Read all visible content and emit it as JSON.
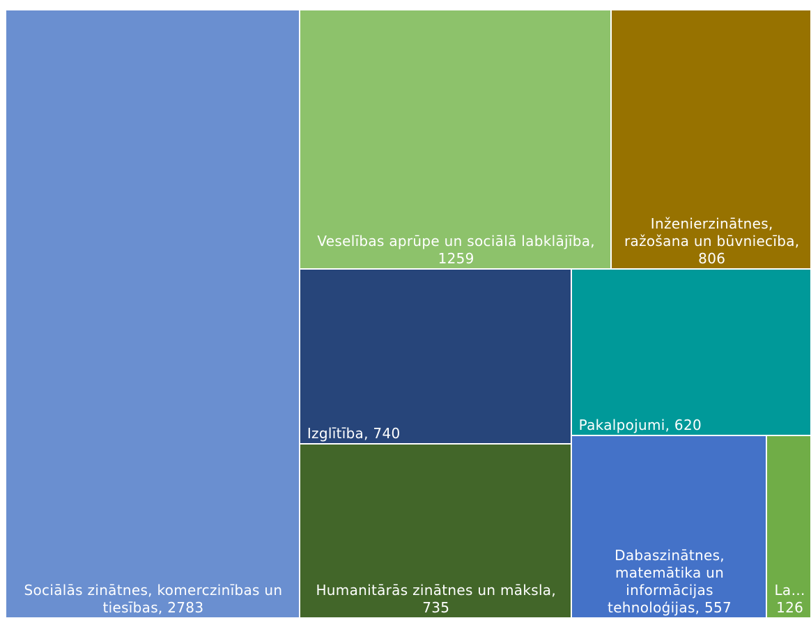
{
  "chart_data": {
    "type": "treemap",
    "labels": [
      "Sociālās zinātnes, komerczinības un tiesības, 2783",
      "Veselības aprūpe un sociālā labklājība, 1259",
      "Inženierzinātnes, ražošana un būvniecība, 806",
      "Izglītība, 740",
      "Pakalpojumi, 620",
      "Humanitārās zinātnes un māksla, 735",
      "Dabaszinātnes, matemātika un informācijas tehnoloģijas, 557",
      "La… 126"
    ],
    "values": [
      2783,
      1259,
      806,
      740,
      620,
      735,
      557,
      126
    ],
    "colors": [
      "#6a8fd0",
      "#8dc26b",
      "#977200",
      "#27457a",
      "#009999",
      "#426629",
      "#4472c8",
      "#70ad47"
    ]
  }
}
